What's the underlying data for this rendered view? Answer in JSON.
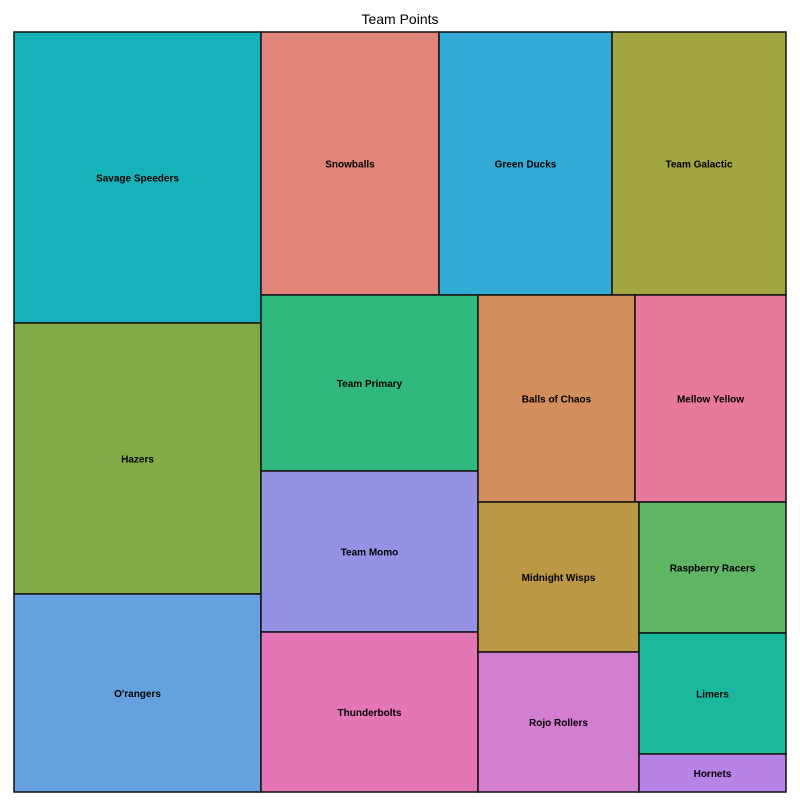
{
  "chart_data": {
    "type": "treemap",
    "title": "Team Points",
    "tiles": [
      {
        "label": "Savage Speeders",
        "color": "#17b2b9"
      },
      {
        "label": "Hazers",
        "color": "#84aa48"
      },
      {
        "label": "O'rangers",
        "color": "#65a1df"
      },
      {
        "label": "Snowballs",
        "color": "#e2847a"
      },
      {
        "label": "Green Ducks",
        "color": "#32acd6"
      },
      {
        "label": "Team Galactic",
        "color": "#a2a641"
      },
      {
        "label": "Team Primary",
        "color": "#31b87e"
      },
      {
        "label": "Team Momo",
        "color": "#9592e6"
      },
      {
        "label": "Thunderbolts",
        "color": "#e576b6"
      },
      {
        "label": "Balls of Chaos",
        "color": "#d38e5d"
      },
      {
        "label": "Mellow Yellow",
        "color": "#e77a9a"
      },
      {
        "label": "Midnight Wisps",
        "color": "#bb9844"
      },
      {
        "label": "Raspberry Racers",
        "color": "#5fb563"
      },
      {
        "label": "Rojo Rollers",
        "color": "#d47ed2"
      },
      {
        "label": "Limers",
        "color": "#1ab89c"
      },
      {
        "label": "Hornets",
        "color": "#b883e6"
      }
    ]
  }
}
